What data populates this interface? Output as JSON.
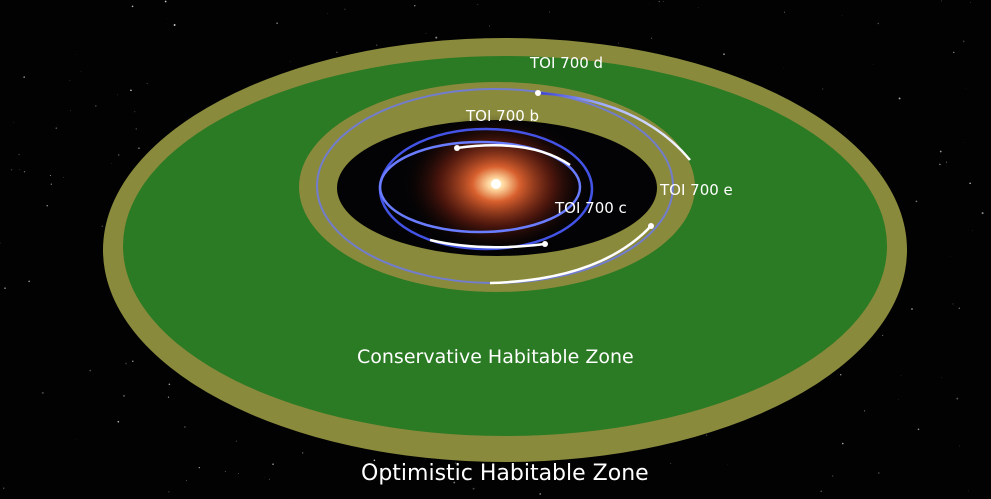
{
  "labels": {
    "planet_d": "TOI 700 d",
    "planet_b": "TOI 700 b",
    "planet_c": "TOI 700 c",
    "planet_e": "TOI 700 e",
    "conservative_zone": "Conservative Habitable Zone",
    "optimistic_zone": "Optimistic Habitable Zone"
  },
  "colors": {
    "optimistic_zone": "#8a8a3a",
    "conservative_zone": "#2a7a22",
    "star": "#c8502a",
    "orbit": "#5a6cff"
  }
}
